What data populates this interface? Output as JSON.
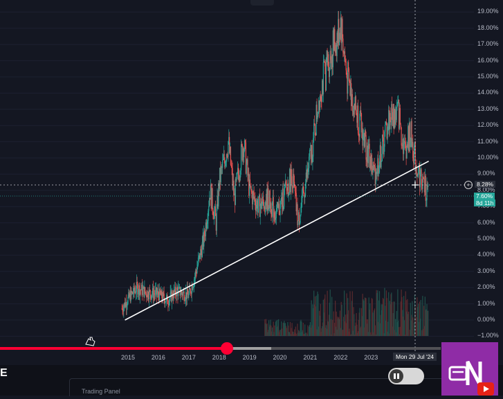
{
  "chart_data": {
    "type": "candlestick",
    "y_axis_ticks": [
      "19.00%",
      "18.00%",
      "17.00%",
      "16.00%",
      "15.00%",
      "14.00%",
      "13.00%",
      "12.00%",
      "11.00%",
      "10.00%",
      "9.00%",
      "8.00%",
      "7.00%",
      "6.00%",
      "5.00%",
      "4.00%",
      "3.00%",
      "2.00%",
      "1.00%",
      "0.00%",
      "−1.00%"
    ],
    "x_axis_ticks": [
      "2015",
      "2016",
      "2017",
      "2018",
      "2019",
      "2020",
      "2021",
      "2022",
      "2023"
    ],
    "crosshair_date": "Mon 29 Jul '24",
    "crosshair_value": "8.28%",
    "last_price_label": "7.60%",
    "countdown_label": "8d 11h",
    "ylim": [
      -1,
      19.5
    ],
    "series": [
      {
        "x": [
          2014.8,
          2015.0,
          2015.3,
          2015.6,
          2016.0,
          2016.3,
          2016.6,
          2017.0,
          2017.2,
          2017.5,
          2017.7,
          2017.9,
          2018.0,
          2018.3,
          2018.5,
          2018.8,
          2019.0,
          2019.3,
          2019.6,
          2019.9,
          2020.2,
          2020.4,
          2020.6,
          2020.9,
          2021.1,
          2021.3,
          2021.6,
          2021.9,
          2022.0,
          2022.2,
          2022.5,
          2022.8,
          2023.1,
          2023.3,
          2023.6,
          2023.9,
          2024.1,
          2024.3,
          2024.5,
          2024.7,
          2024.9
        ],
        "y": [
          0.7,
          1.3,
          2.0,
          1.7,
          1.6,
          1.2,
          1.8,
          1.5,
          2.7,
          5.0,
          8.0,
          6.0,
          8.5,
          11.0,
          7.5,
          11.0,
          8.0,
          7.0,
          7.5,
          6.5,
          8.0,
          9.0,
          6.0,
          9.0,
          11.0,
          14.0,
          16.0,
          17.5,
          18.5,
          15.0,
          13.0,
          11.0,
          9.0,
          10.0,
          12.5,
          12.8,
          10.5,
          11.5,
          9.5,
          8.5,
          7.6
        ]
      }
    ],
    "trendline": {
      "from": [
        2014.9,
        0.0
      ],
      "to": [
        2024.9,
        9.8
      ]
    }
  },
  "ui": {
    "left_cutoff_letter": "E",
    "trading_panel_label": "Trading Panel"
  }
}
